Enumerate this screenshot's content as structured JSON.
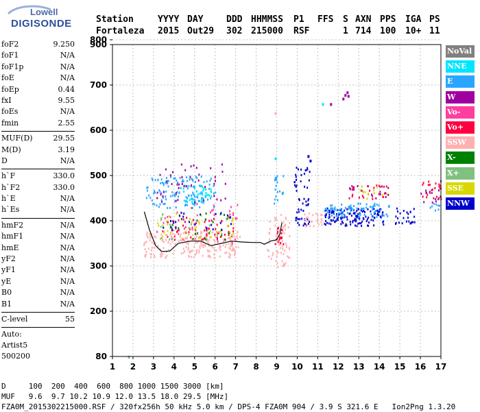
{
  "logo": {
    "line1": "Lowell",
    "line2": "DIGISONDE"
  },
  "header": {
    "labels": [
      "Station",
      "YYYY",
      "DAY",
      "DDD",
      "HHMMSS",
      "P1",
      "FFS",
      "S",
      "AXN",
      "PPS",
      "IGA",
      "PS"
    ],
    "values": [
      "Fortaleza",
      "2015",
      "Out29",
      "302",
      "215000",
      "RSF",
      "1",
      "714",
      "100",
      "10+",
      "11"
    ]
  },
  "params": {
    "group1": [
      {
        "k": "foF2",
        "v": "9.250"
      },
      {
        "k": "foF1",
        "v": "N/A"
      },
      {
        "k": "foF1p",
        "v": "N/A"
      },
      {
        "k": "foE",
        "v": "N/A"
      },
      {
        "k": "foEp",
        "v": "0.44"
      },
      {
        "k": "fxI",
        "v": "9.55"
      },
      {
        "k": "foEs",
        "v": "N/A"
      },
      {
        "k": "fmin",
        "v": "2.55"
      }
    ],
    "group2": [
      {
        "k": "MUF(D)",
        "v": "29.55"
      },
      {
        "k": "M(D)",
        "v": "3.19"
      },
      {
        "k": "D",
        "v": "N/A"
      }
    ],
    "group3": [
      {
        "k": "h`F",
        "v": "330.0"
      },
      {
        "k": "h`F2",
        "v": "330.0"
      },
      {
        "k": "h`E",
        "v": "N/A"
      },
      {
        "k": "h`Es",
        "v": "N/A"
      }
    ],
    "group4": [
      {
        "k": "hmF2",
        "v": "N/A"
      },
      {
        "k": "hmF1",
        "v": "N/A"
      },
      {
        "k": "hmE",
        "v": "N/A"
      },
      {
        "k": "yF2",
        "v": "N/A"
      },
      {
        "k": "yF1",
        "v": "N/A"
      },
      {
        "k": "yE",
        "v": "N/A"
      },
      {
        "k": "B0",
        "v": "N/A"
      },
      {
        "k": "B1",
        "v": "N/A"
      }
    ],
    "clevel": {
      "k": "C-level",
      "v": "55"
    },
    "auto": [
      "Auto:",
      "Artist5",
      "500200"
    ]
  },
  "legend": [
    {
      "label": "NoVal",
      "color": "#808080"
    },
    {
      "label": "NNE",
      "color": "#00e5ff"
    },
    {
      "label": "E",
      "color": "#2aa6ff"
    },
    {
      "label": "W",
      "color": "#a000a0"
    },
    {
      "label": "Vo-",
      "color": "#ff3fa0"
    },
    {
      "label": "Vo+",
      "color": "#ff0040"
    },
    {
      "label": "SSW",
      "color": "#ffb0b0"
    },
    {
      "label": "X-",
      "color": "#008000"
    },
    {
      "label": "X+",
      "color": "#80c080"
    },
    {
      "label": "SSE",
      "color": "#d8d800"
    },
    {
      "label": "NNW",
      "color": "#0000cc"
    }
  ],
  "footer": {
    "line1": "D     100  200  400  600  800 1000 1500 3000 [km]",
    "line2": "MUF   9.6  9.7 10.2 10.9 12.0 13.5 18.0 29.5 [MHz]",
    "line3": "FZA0M_2015302215000.RSF / 320fx256h 50 kHz 5.0 km / DPS-4 FZA0M 904 / 3.9 S 321.6 E   Ion2Png 1.3.20"
  },
  "chart_data": {
    "type": "scatter",
    "x": {
      "ticks": [
        1,
        2,
        3,
        4,
        5,
        6,
        7,
        8,
        9,
        10,
        11,
        12,
        13,
        14,
        15,
        16,
        17
      ],
      "range": [
        1,
        17
      ]
    },
    "y": {
      "ticks": [
        80,
        200,
        300,
        400,
        500,
        600,
        700,
        800,
        900
      ],
      "range": [
        80,
        900
      ]
    },
    "profile_line": [
      [
        2.55,
        420
      ],
      [
        2.8,
        380
      ],
      [
        3.1,
        345
      ],
      [
        3.4,
        332
      ],
      [
        3.8,
        333
      ],
      [
        4.2,
        350
      ],
      [
        4.8,
        355
      ],
      [
        5.3,
        355
      ],
      [
        5.8,
        345
      ],
      [
        6.3,
        350
      ],
      [
        6.8,
        355
      ],
      [
        7.3,
        353
      ],
      [
        7.8,
        352
      ],
      [
        8.2,
        352
      ],
      [
        8.4,
        348
      ],
      [
        8.7,
        355
      ],
      [
        9.0,
        358
      ],
      [
        9.15,
        370
      ],
      [
        9.25,
        395
      ]
    ],
    "echo_clusters": [
      {
        "series": "E",
        "x": [
          2.6,
          6.0
        ],
        "h": [
          430,
          500
        ],
        "density": 140
      },
      {
        "series": "NNE",
        "x": [
          4.4,
          5.8
        ],
        "h": [
          440,
          480
        ],
        "density": 40
      },
      {
        "series": "W",
        "x": [
          3.1,
          6.6
        ],
        "h": [
          440,
          530
        ],
        "density": 45
      },
      {
        "series": "Vo+",
        "x": [
          3.4,
          7.0
        ],
        "h": [
          360,
          410
        ],
        "density": 60
      },
      {
        "series": "Vo-",
        "x": [
          3.1,
          7.1
        ],
        "h": [
          350,
          440
        ],
        "density": 45
      },
      {
        "series": "SSW",
        "x": [
          2.5,
          7.2
        ],
        "h": [
          320,
          380
        ],
        "density": 220
      },
      {
        "series": "SSE",
        "x": [
          3.1,
          7.0
        ],
        "h": [
          360,
          420
        ],
        "density": 45
      },
      {
        "series": "X-",
        "x": [
          3.2,
          6.9
        ],
        "h": [
          360,
          420
        ],
        "density": 20
      },
      {
        "series": "X+",
        "x": [
          3.2,
          6.9
        ],
        "h": [
          360,
          420
        ],
        "density": 20
      },
      {
        "series": "NNW",
        "x": [
          3.4,
          6.8
        ],
        "h": [
          380,
          420
        ],
        "density": 25
      },
      {
        "series": "SSW",
        "x": [
          8.5,
          9.6
        ],
        "h": [
          300,
          420
        ],
        "density": 70
      },
      {
        "series": "Vo+",
        "x": [
          8.9,
          9.3
        ],
        "h": [
          350,
          390
        ],
        "density": 18
      },
      {
        "series": "E",
        "x": [
          8.8,
          9.3
        ],
        "h": [
          440,
          510
        ],
        "density": 20
      },
      {
        "series": "NNW",
        "x": [
          9.8,
          10.6
        ],
        "h": [
          390,
          520
        ],
        "density": 55
      },
      {
        "series": "SSW",
        "x": [
          10.3,
          11.2
        ],
        "h": [
          390,
          420
        ],
        "density": 25
      },
      {
        "series": "NNW",
        "x": [
          11.3,
          14.2
        ],
        "h": [
          390,
          430
        ],
        "density": 140
      },
      {
        "series": "E",
        "x": [
          11.3,
          14.5
        ],
        "h": [
          410,
          440
        ],
        "density": 80
      },
      {
        "series": "Vo+",
        "x": [
          12.5,
          14.5
        ],
        "h": [
          450,
          480
        ],
        "density": 25
      },
      {
        "series": "W",
        "x": [
          12.5,
          14.5
        ],
        "h": [
          450,
          480
        ],
        "density": 15
      },
      {
        "series": "SSE",
        "x": [
          12.8,
          14.5
        ],
        "h": [
          450,
          480
        ],
        "density": 12
      },
      {
        "series": "NNW",
        "x": [
          14.7,
          15.7
        ],
        "h": [
          395,
          430
        ],
        "density": 25
      },
      {
        "series": "Vo+",
        "x": [
          16.0,
          17.0
        ],
        "h": [
          450,
          490
        ],
        "density": 25
      },
      {
        "series": "W",
        "x": [
          16.0,
          17.0
        ],
        "h": [
          440,
          470
        ],
        "density": 12
      },
      {
        "series": "E",
        "x": [
          16.4,
          17.0
        ],
        "h": [
          420,
          440
        ],
        "density": 8
      }
    ],
    "echo_points": [
      {
        "series": "W",
        "x": 12.2,
        "h": 672
      },
      {
        "series": "W",
        "x": 12.3,
        "h": 680
      },
      {
        "series": "W",
        "x": 12.4,
        "h": 686
      },
      {
        "series": "W",
        "x": 12.45,
        "h": 678
      },
      {
        "series": "NNE",
        "x": 11.2,
        "h": 660
      },
      {
        "series": "W",
        "x": 11.6,
        "h": 660
      },
      {
        "series": "SSW",
        "x": 8.9,
        "h": 640
      },
      {
        "series": "NNW",
        "x": 10.5,
        "h": 545
      },
      {
        "series": "NNW",
        "x": 10.6,
        "h": 535
      },
      {
        "series": "NNE",
        "x": 8.9,
        "h": 540
      },
      {
        "series": "X+",
        "x": 1.75,
        "h": 82
      }
    ]
  }
}
